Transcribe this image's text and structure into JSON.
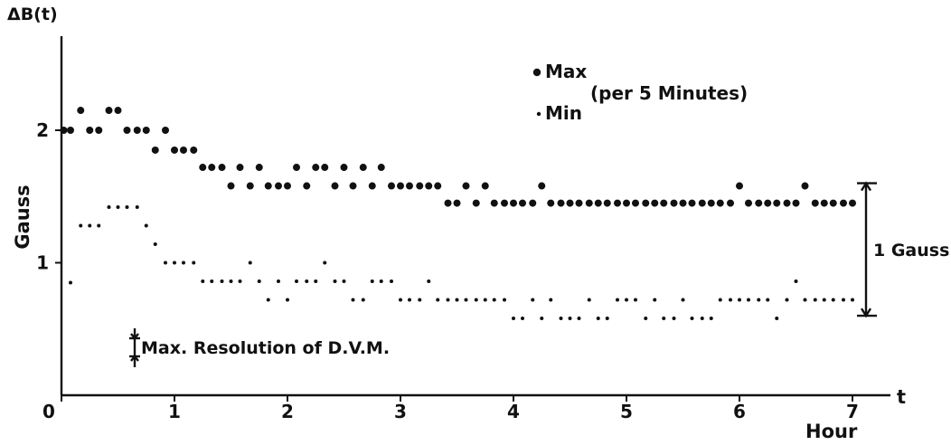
{
  "chart_data": {
    "type": "scatter",
    "title": "",
    "xlabel": "Hour",
    "x_axis_symbol": "t",
    "ylabel": "Gauss",
    "y_axis_symbol": "ΔB(t)",
    "xlim": [
      0,
      7.2
    ],
    "ylim": [
      0,
      2.7
    ],
    "x_ticks": [
      "0",
      "1",
      "2",
      "3",
      "4",
      "5",
      "6",
      "7"
    ],
    "y_ticks": [
      "1",
      "2"
    ],
    "grid": false,
    "legend": {
      "placement": "top-center",
      "max_label": "Max",
      "min_label": "Min",
      "note": "(per 5 Minutes)"
    },
    "annotations": {
      "resolution_label": "Max. Resolution of D.V.M.",
      "range_label": "1 Gauss",
      "range_from": 0.6,
      "range_to": 1.6
    },
    "series": [
      {
        "name": "Max",
        "marker": "large-dot",
        "x": [
          0.02,
          0.08,
          0.17,
          0.25,
          0.33,
          0.42,
          0.5,
          0.58,
          0.67,
          0.75,
          0.83,
          0.92,
          1.0,
          1.08,
          1.17,
          1.25,
          1.33,
          1.42,
          1.5,
          1.58,
          1.67,
          1.75,
          1.83,
          1.92,
          2.0,
          2.08,
          2.17,
          2.25,
          2.33,
          2.42,
          2.5,
          2.58,
          2.67,
          2.75,
          2.83,
          2.92,
          3.0,
          3.08,
          3.17,
          3.25,
          3.33,
          3.42,
          3.5,
          3.58,
          3.67,
          3.75,
          3.83,
          3.92,
          4.0,
          4.08,
          4.17,
          4.25,
          4.33,
          4.42,
          4.5,
          4.58,
          4.67,
          4.75,
          4.83,
          4.92,
          5.0,
          5.08,
          5.17,
          5.25,
          5.33,
          5.42,
          5.5,
          5.58,
          5.67,
          5.75,
          5.83,
          5.92,
          6.0,
          6.08,
          6.17,
          6.25,
          6.33,
          6.42,
          6.5,
          6.58,
          6.67,
          6.75,
          6.83,
          6.92,
          7.0
        ],
        "y": [
          2.0,
          2.0,
          2.15,
          2.0,
          2.0,
          2.15,
          2.15,
          2.0,
          2.0,
          2.0,
          1.85,
          2.0,
          1.85,
          1.85,
          1.85,
          1.72,
          1.72,
          1.72,
          1.58,
          1.72,
          1.58,
          1.72,
          1.58,
          1.58,
          1.58,
          1.72,
          1.58,
          1.72,
          1.72,
          1.58,
          1.72,
          1.58,
          1.72,
          1.58,
          1.72,
          1.58,
          1.58,
          1.58,
          1.58,
          1.58,
          1.58,
          1.45,
          1.45,
          1.58,
          1.45,
          1.58,
          1.45,
          1.45,
          1.45,
          1.45,
          1.45,
          1.58,
          1.45,
          1.45,
          1.45,
          1.45,
          1.45,
          1.45,
          1.45,
          1.45,
          1.45,
          1.45,
          1.45,
          1.45,
          1.45,
          1.45,
          1.45,
          1.45,
          1.45,
          1.45,
          1.45,
          1.45,
          1.58,
          1.45,
          1.45,
          1.45,
          1.45,
          1.45,
          1.45,
          1.58,
          1.45,
          1.45,
          1.45,
          1.45,
          1.45
        ]
      },
      {
        "name": "Min",
        "marker": "small-dot",
        "x": [
          0.08,
          0.17,
          0.25,
          0.33,
          0.42,
          0.5,
          0.58,
          0.67,
          0.75,
          0.83,
          0.92,
          1.0,
          1.08,
          1.17,
          1.25,
          1.33,
          1.42,
          1.5,
          1.58,
          1.67,
          1.75,
          1.83,
          1.92,
          2.0,
          2.08,
          2.17,
          2.25,
          2.33,
          2.42,
          2.5,
          2.58,
          2.67,
          2.75,
          2.83,
          2.92,
          3.0,
          3.08,
          3.17,
          3.25,
          3.33,
          3.42,
          3.5,
          3.58,
          3.67,
          3.75,
          3.83,
          3.92,
          4.0,
          4.08,
          4.17,
          4.25,
          4.33,
          4.42,
          4.5,
          4.58,
          4.67,
          4.75,
          4.83,
          4.92,
          5.0,
          5.08,
          5.17,
          5.25,
          5.33,
          5.42,
          5.5,
          5.58,
          5.67,
          5.75,
          5.83,
          5.92,
          6.0,
          6.08,
          6.17,
          6.25,
          6.33,
          6.42,
          6.5,
          6.58,
          6.67,
          6.75,
          6.83,
          6.92,
          7.0
        ],
        "y": [
          0.85,
          1.28,
          1.28,
          1.28,
          1.42,
          1.42,
          1.42,
          1.42,
          1.28,
          1.14,
          1.0,
          1.0,
          1.0,
          1.0,
          0.86,
          0.86,
          0.86,
          0.86,
          0.86,
          1.0,
          0.86,
          0.72,
          0.86,
          0.72,
          0.86,
          0.86,
          0.86,
          1.0,
          0.86,
          0.86,
          0.72,
          0.72,
          0.86,
          0.86,
          0.86,
          0.72,
          0.72,
          0.72,
          0.86,
          0.72,
          0.72,
          0.72,
          0.72,
          0.72,
          0.72,
          0.72,
          0.72,
          0.58,
          0.58,
          0.72,
          0.58,
          0.72,
          0.58,
          0.58,
          0.58,
          0.72,
          0.58,
          0.58,
          0.72,
          0.72,
          0.72,
          0.58,
          0.72,
          0.58,
          0.58,
          0.72,
          0.58,
          0.58,
          0.58,
          0.72,
          0.72,
          0.72,
          0.72,
          0.72,
          0.72,
          0.58,
          0.72,
          0.86,
          0.72,
          0.72,
          0.72,
          0.72,
          0.72,
          0.72
        ]
      }
    ]
  }
}
